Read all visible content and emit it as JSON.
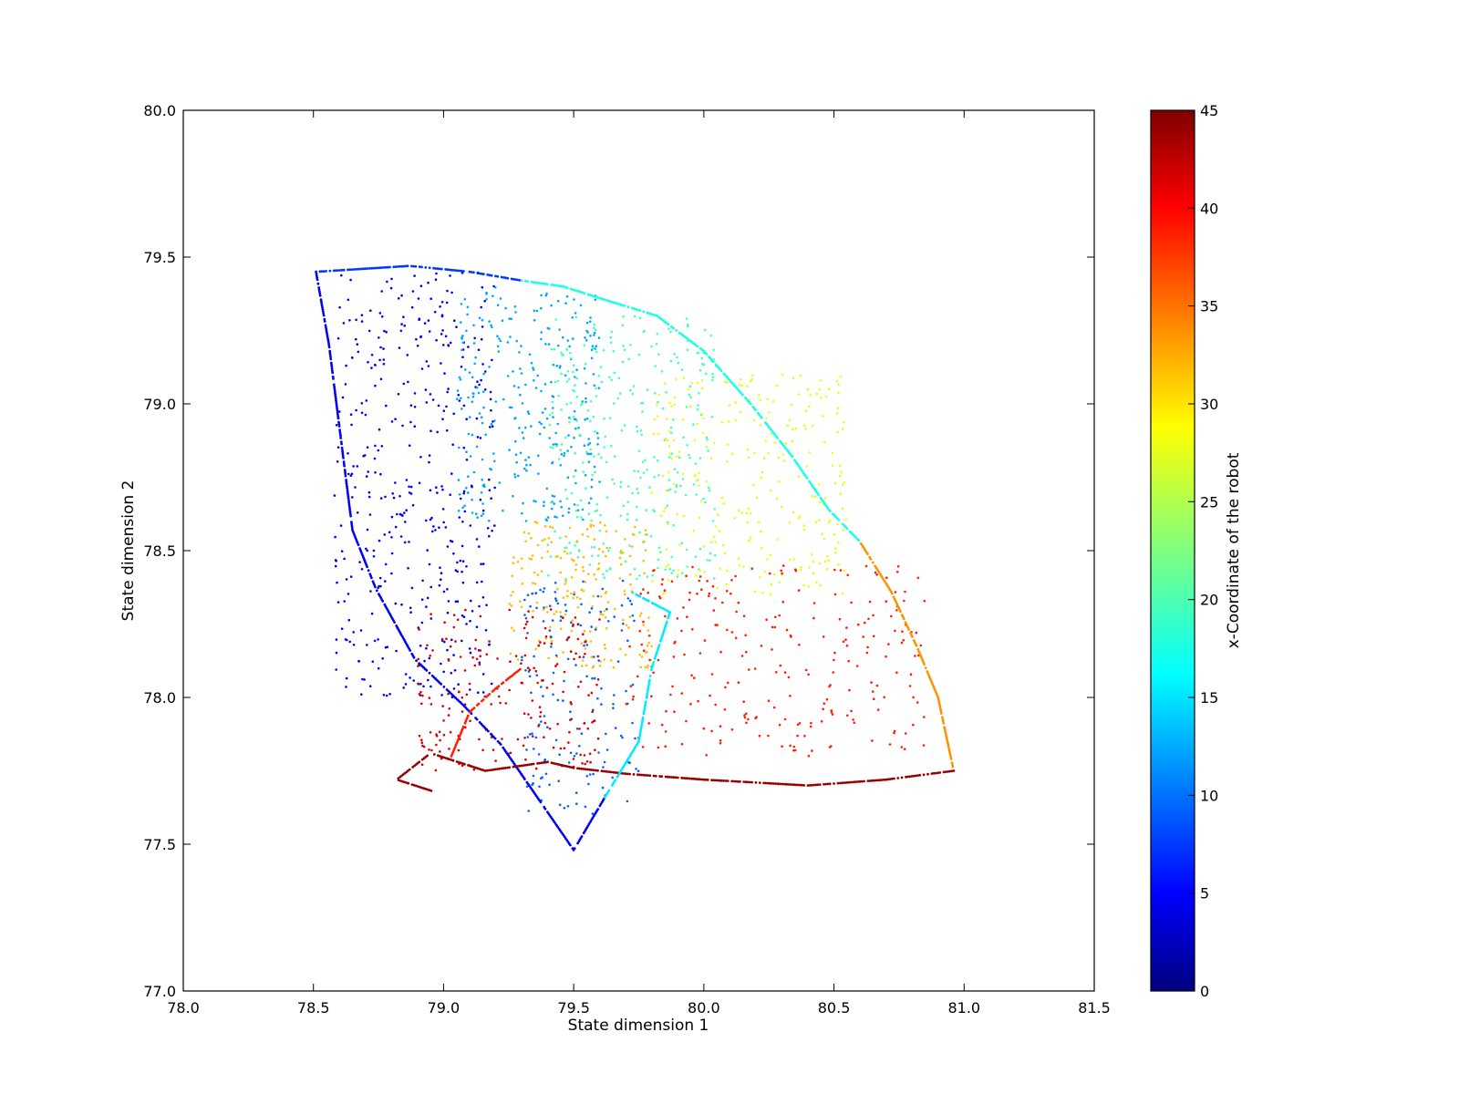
{
  "chart_data": {
    "type": "scatter",
    "xlabel": "State dimension 1",
    "ylabel": "State dimension 2",
    "xlim": [
      78.0,
      81.5
    ],
    "ylim": [
      77.0,
      80.0
    ],
    "xticks": [
      "78.0",
      "78.5",
      "79.0",
      "79.5",
      "80.0",
      "80.5",
      "81.0",
      "81.5"
    ],
    "yticks": [
      "77.0",
      "77.5",
      "78.0",
      "78.5",
      "79.0",
      "79.5",
      "80.0"
    ],
    "grid": false,
    "colorbar": {
      "label": "x-Coordinate of the robot",
      "range": [
        0,
        45
      ],
      "ticks": [
        "0",
        "5",
        "10",
        "15",
        "20",
        "25",
        "30",
        "35",
        "40",
        "45"
      ],
      "colormap": "jet"
    },
    "boundary_paths": [
      {
        "color_value": 5,
        "points": [
          [
            78.51,
            79.45
          ],
          [
            78.56,
            79.2
          ],
          [
            78.61,
            78.85
          ],
          [
            78.65,
            78.57
          ],
          [
            78.74,
            78.37
          ],
          [
            78.89,
            78.13
          ],
          [
            79.08,
            77.97
          ],
          [
            79.22,
            77.84
          ],
          [
            79.5,
            77.48
          ],
          [
            79.62,
            77.66
          ]
        ]
      },
      {
        "color_value": 8,
        "points": [
          [
            78.51,
            79.45
          ],
          [
            78.87,
            79.47
          ],
          [
            79.1,
            79.45
          ],
          [
            79.3,
            79.42
          ]
        ]
      },
      {
        "color_value": 18,
        "points": [
          [
            79.3,
            79.42
          ],
          [
            79.46,
            79.4
          ],
          [
            79.6,
            79.36
          ],
          [
            79.82,
            79.3
          ],
          [
            80.0,
            79.18
          ],
          [
            80.18,
            79.0
          ],
          [
            80.34,
            78.82
          ],
          [
            80.48,
            78.64
          ],
          [
            80.6,
            78.53
          ]
        ]
      },
      {
        "color_value": 33,
        "points": [
          [
            80.6,
            78.53
          ],
          [
            80.72,
            78.36
          ],
          [
            80.82,
            78.17
          ],
          [
            80.9,
            78.0
          ],
          [
            80.96,
            77.75
          ]
        ]
      },
      {
        "color_value": 44,
        "points": [
          [
            80.96,
            77.75
          ],
          [
            80.7,
            77.72
          ],
          [
            80.4,
            77.7
          ],
          [
            80.0,
            77.72
          ],
          [
            79.7,
            77.74
          ],
          [
            79.5,
            77.76
          ],
          [
            79.4,
            77.78
          ],
          [
            79.16,
            77.75
          ],
          [
            78.95,
            77.81
          ],
          [
            78.82,
            77.72
          ],
          [
            78.96,
            77.68
          ]
        ]
      },
      {
        "color_value": 16,
        "points": [
          [
            79.62,
            77.66
          ],
          [
            79.75,
            77.85
          ],
          [
            79.8,
            78.1
          ],
          [
            79.87,
            78.29
          ],
          [
            79.72,
            78.36
          ]
        ]
      },
      {
        "color_value": 38,
        "points": [
          [
            79.03,
            77.8
          ],
          [
            79.1,
            77.95
          ],
          [
            79.2,
            78.03
          ],
          [
            79.3,
            78.1
          ]
        ]
      }
    ],
    "scatter_regions": [
      {
        "color_value": 5,
        "count": 420,
        "x_range": [
          78.58,
          79.2
        ],
        "y_range": [
          78.0,
          79.45
        ]
      },
      {
        "color_value": 13,
        "count": 300,
        "x_range": [
          79.05,
          79.6
        ],
        "y_range": [
          78.6,
          79.4
        ]
      },
      {
        "color_value": 20,
        "count": 320,
        "x_range": [
          79.4,
          80.05
        ],
        "y_range": [
          78.4,
          79.3
        ]
      },
      {
        "color_value": 27,
        "count": 260,
        "x_range": [
          79.8,
          80.55
        ],
        "y_range": [
          78.35,
          79.1
        ]
      },
      {
        "color_value": 31,
        "count": 200,
        "x_range": [
          79.25,
          79.8
        ],
        "y_range": [
          78.1,
          78.6
        ]
      },
      {
        "color_value": 10,
        "count": 160,
        "x_range": [
          79.3,
          79.75
        ],
        "y_range": [
          77.6,
          78.4
        ]
      },
      {
        "color_value": 38,
        "count": 250,
        "x_range": [
          79.7,
          80.85
        ],
        "y_range": [
          77.8,
          78.45
        ]
      },
      {
        "color_value": 41,
        "count": 200,
        "x_range": [
          78.9,
          79.6
        ],
        "y_range": [
          77.75,
          78.3
        ]
      }
    ]
  }
}
